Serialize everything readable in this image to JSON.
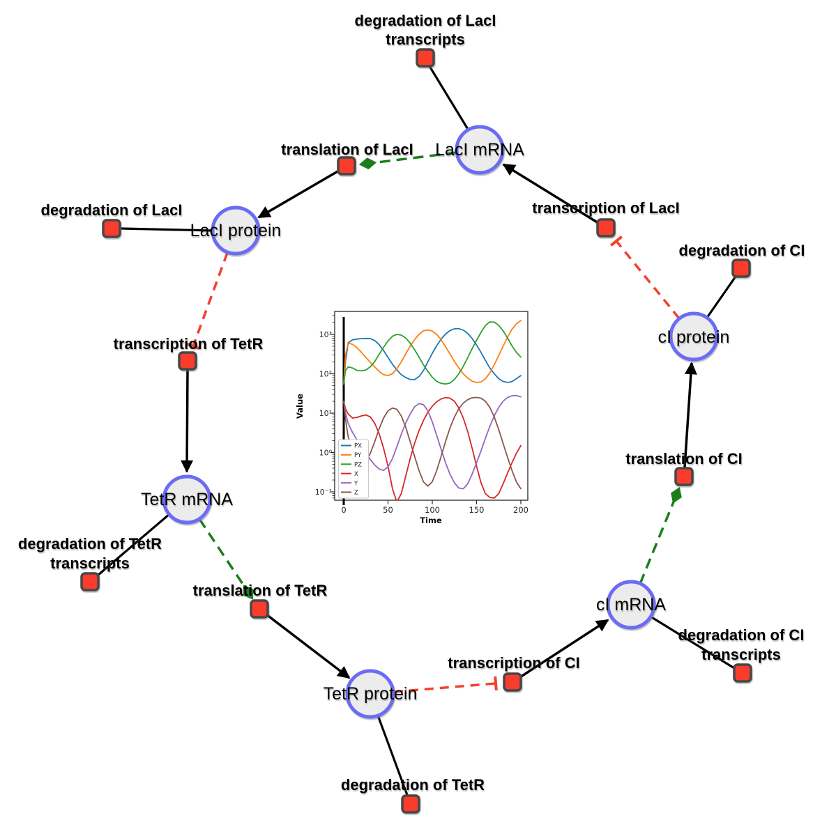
{
  "figure": {
    "background": "#ffffff",
    "colors": {
      "species_fill": "#ececec",
      "species_border": "#6b6bf5",
      "reaction_fill": "#fa3c2c",
      "reaction_border": "#474747",
      "consumption_edge": "#000000",
      "production_edge": "#000000",
      "modifier_edge": "#1b7e1b",
      "inhibition_edge": "#f4402f"
    }
  },
  "network": {
    "species": [
      {
        "id": "laci-mrna",
        "label": "LacI mRNA"
      },
      {
        "id": "laci-protein",
        "label": "LacI protein"
      },
      {
        "id": "tetr-mrna",
        "label": "TetR mRNA"
      },
      {
        "id": "tetr-protein",
        "label": "TetR protein"
      },
      {
        "id": "ci-mrna",
        "label": "cI mRNA"
      },
      {
        "id": "ci-protein",
        "label": "cI protein"
      }
    ],
    "reactions": [
      {
        "id": "degradation-of-laci-transcripts",
        "lines": [
          "degradation of LacI",
          "transcripts"
        ]
      },
      {
        "id": "translation-of-laci",
        "lines": [
          "translation of LacI"
        ]
      },
      {
        "id": "degradation-of-laci",
        "lines": [
          "degradation of LacI"
        ]
      },
      {
        "id": "transcription-of-laci",
        "lines": [
          "transcription of LacI"
        ]
      },
      {
        "id": "degradation-of-ci",
        "lines": [
          "degradation of CI"
        ]
      },
      {
        "id": "transcription-of-tetr",
        "lines": [
          "transcription of TetR"
        ]
      },
      {
        "id": "translation-of-ci",
        "lines": [
          "translation of CI"
        ]
      },
      {
        "id": "degradation-of-tetr-transcripts",
        "lines": [
          "degradation of TetR",
          "transcripts"
        ]
      },
      {
        "id": "translation-of-tetr",
        "lines": [
          "translation of TetR"
        ]
      },
      {
        "id": "degradation-of-ci-transcripts",
        "lines": [
          "degradation of CI",
          "transcripts"
        ]
      },
      {
        "id": "transcription-of-ci",
        "lines": [
          "transcription of CI"
        ]
      },
      {
        "id": "degradation-of-tetr",
        "lines": [
          "degradation of TetR"
        ]
      }
    ],
    "edges": [
      {
        "from": "laci-mrna",
        "to": "degradation-of-laci-transcripts",
        "type": "consumption"
      },
      {
        "from": "laci-mrna",
        "to": "translation-of-laci",
        "type": "modifier"
      },
      {
        "from": "translation-of-laci",
        "to": "laci-protein",
        "type": "production"
      },
      {
        "from": "laci-protein",
        "to": "degradation-of-laci",
        "type": "consumption"
      },
      {
        "from": "laci-protein",
        "to": "transcription-of-tetr",
        "type": "inhibition"
      },
      {
        "from": "transcription-of-tetr",
        "to": "tetr-mrna",
        "type": "production"
      },
      {
        "from": "tetr-mrna",
        "to": "degradation-of-tetr-transcripts",
        "type": "consumption"
      },
      {
        "from": "tetr-mrna",
        "to": "translation-of-tetr",
        "type": "modifier"
      },
      {
        "from": "translation-of-tetr",
        "to": "tetr-protein",
        "type": "production"
      },
      {
        "from": "tetr-protein",
        "to": "degradation-of-tetr",
        "type": "consumption"
      },
      {
        "from": "tetr-protein",
        "to": "transcription-of-ci",
        "type": "inhibition"
      },
      {
        "from": "transcription-of-ci",
        "to": "ci-mrna",
        "type": "production"
      },
      {
        "from": "ci-mrna",
        "to": "degradation-of-ci-transcripts",
        "type": "consumption"
      },
      {
        "from": "ci-mrna",
        "to": "translation-of-ci",
        "type": "modifier"
      },
      {
        "from": "translation-of-ci",
        "to": "ci-protein",
        "type": "production"
      },
      {
        "from": "ci-protein",
        "to": "degradation-of-ci",
        "type": "consumption"
      },
      {
        "from": "ci-protein",
        "to": "transcription-of-laci",
        "type": "inhibition"
      }
    ]
  },
  "chart_data": {
    "type": "line",
    "title": "",
    "xlabel": "Time",
    "ylabel": "Value",
    "y_scale": "log",
    "xlim": [
      0,
      200
    ],
    "x_ticks": [
      0,
      50,
      100,
      150,
      200
    ],
    "y_ticks": [
      0.1,
      1,
      10,
      100,
      1000
    ],
    "y_tick_labels": [
      "10⁻¹",
      "10⁰",
      "10¹",
      "10²",
      "10³"
    ],
    "legend_position": "lower left",
    "grid": false,
    "event_line_x": 0,
    "x": [
      0,
      2,
      5,
      10,
      15,
      20,
      25,
      30,
      35,
      40,
      45,
      50,
      55,
      60,
      65,
      70,
      75,
      80,
      85,
      90,
      95,
      100,
      105,
      110,
      115,
      120,
      125,
      130,
      135,
      140,
      145,
      150,
      155,
      160,
      165,
      170,
      175,
      180,
      185,
      190,
      195,
      200
    ],
    "series": [
      {
        "name": "PX",
        "color": "#1f77b4",
        "values": [
          55,
          200,
          620,
          730,
          760,
          780,
          790,
          780,
          700,
          550,
          390,
          260,
          175,
          125,
          95,
          80,
          72,
          71,
          85,
          120,
          200,
          330,
          520,
          760,
          1020,
          1250,
          1390,
          1400,
          1290,
          1060,
          790,
          540,
          350,
          220,
          140,
          100,
          75,
          64,
          60,
          63,
          75,
          90
        ]
      },
      {
        "name": "PY",
        "color": "#ff7f0e",
        "values": [
          55,
          300,
          600,
          560,
          460,
          350,
          260,
          195,
          150,
          115,
          95,
          90,
          100,
          135,
          200,
          320,
          500,
          740,
          1000,
          1230,
          1300,
          1220,
          1000,
          730,
          490,
          320,
          205,
          140,
          100,
          78,
          65,
          60,
          62,
          75,
          105,
          170,
          290,
          500,
          850,
          1350,
          1850,
          2250
        ]
      },
      {
        "name": "PZ",
        "color": "#2ca02c",
        "values": [
          55,
          120,
          150,
          140,
          122,
          118,
          125,
          150,
          205,
          310,
          470,
          680,
          900,
          1000,
          960,
          810,
          600,
          410,
          265,
          170,
          115,
          82,
          64,
          57,
          55,
          58,
          72,
          100,
          155,
          255,
          430,
          710,
          1130,
          1680,
          2080,
          2050,
          1700,
          1230,
          810,
          510,
          350,
          265
        ]
      },
      {
        "name": "X",
        "color": "#d62728",
        "values": [
          20,
          13,
          9.5,
          7.5,
          7.8,
          8.5,
          9,
          8,
          5.5,
          3,
          1.3,
          0.45,
          0.12,
          0.055,
          0.09,
          0.25,
          0.7,
          1.7,
          3.6,
          6.5,
          10.5,
          15,
          19.5,
          23,
          24.8,
          24,
          20,
          13.5,
          7.5,
          3.4,
          1.3,
          0.45,
          0.17,
          0.09,
          0.072,
          0.07,
          0.09,
          0.16,
          0.3,
          0.55,
          0.95,
          1.5
        ]
      },
      {
        "name": "Y",
        "color": "#9467bd",
        "values": [
          20,
          10,
          5.5,
          3.2,
          2.1,
          1.4,
          0.95,
          0.66,
          0.48,
          0.38,
          0.35,
          0.43,
          0.7,
          1.4,
          2.9,
          5.6,
          9.5,
          14.5,
          17.5,
          16.5,
          11.5,
          6,
          2.7,
          1.2,
          0.55,
          0.28,
          0.17,
          0.125,
          0.12,
          0.16,
          0.28,
          0.55,
          1.1,
          2.3,
          4.6,
          8.5,
          14,
          20,
          25,
          27.5,
          28,
          26
        ]
      },
      {
        "name": "Z",
        "color": "#8c564b",
        "values": [
          20,
          7,
          2.5,
          1.1,
          0.65,
          0.52,
          0.6,
          0.95,
          1.9,
          4,
          7.5,
          11.5,
          13.5,
          12.5,
          8.5,
          4.4,
          1.9,
          0.8,
          0.35,
          0.18,
          0.14,
          0.18,
          0.35,
          0.8,
          1.9,
          4.2,
          8,
          13,
          18,
          22,
          24.5,
          25,
          24,
          20,
          14,
          8,
          3.8,
          1.7,
          0.75,
          0.35,
          0.18,
          0.12
        ]
      }
    ]
  }
}
